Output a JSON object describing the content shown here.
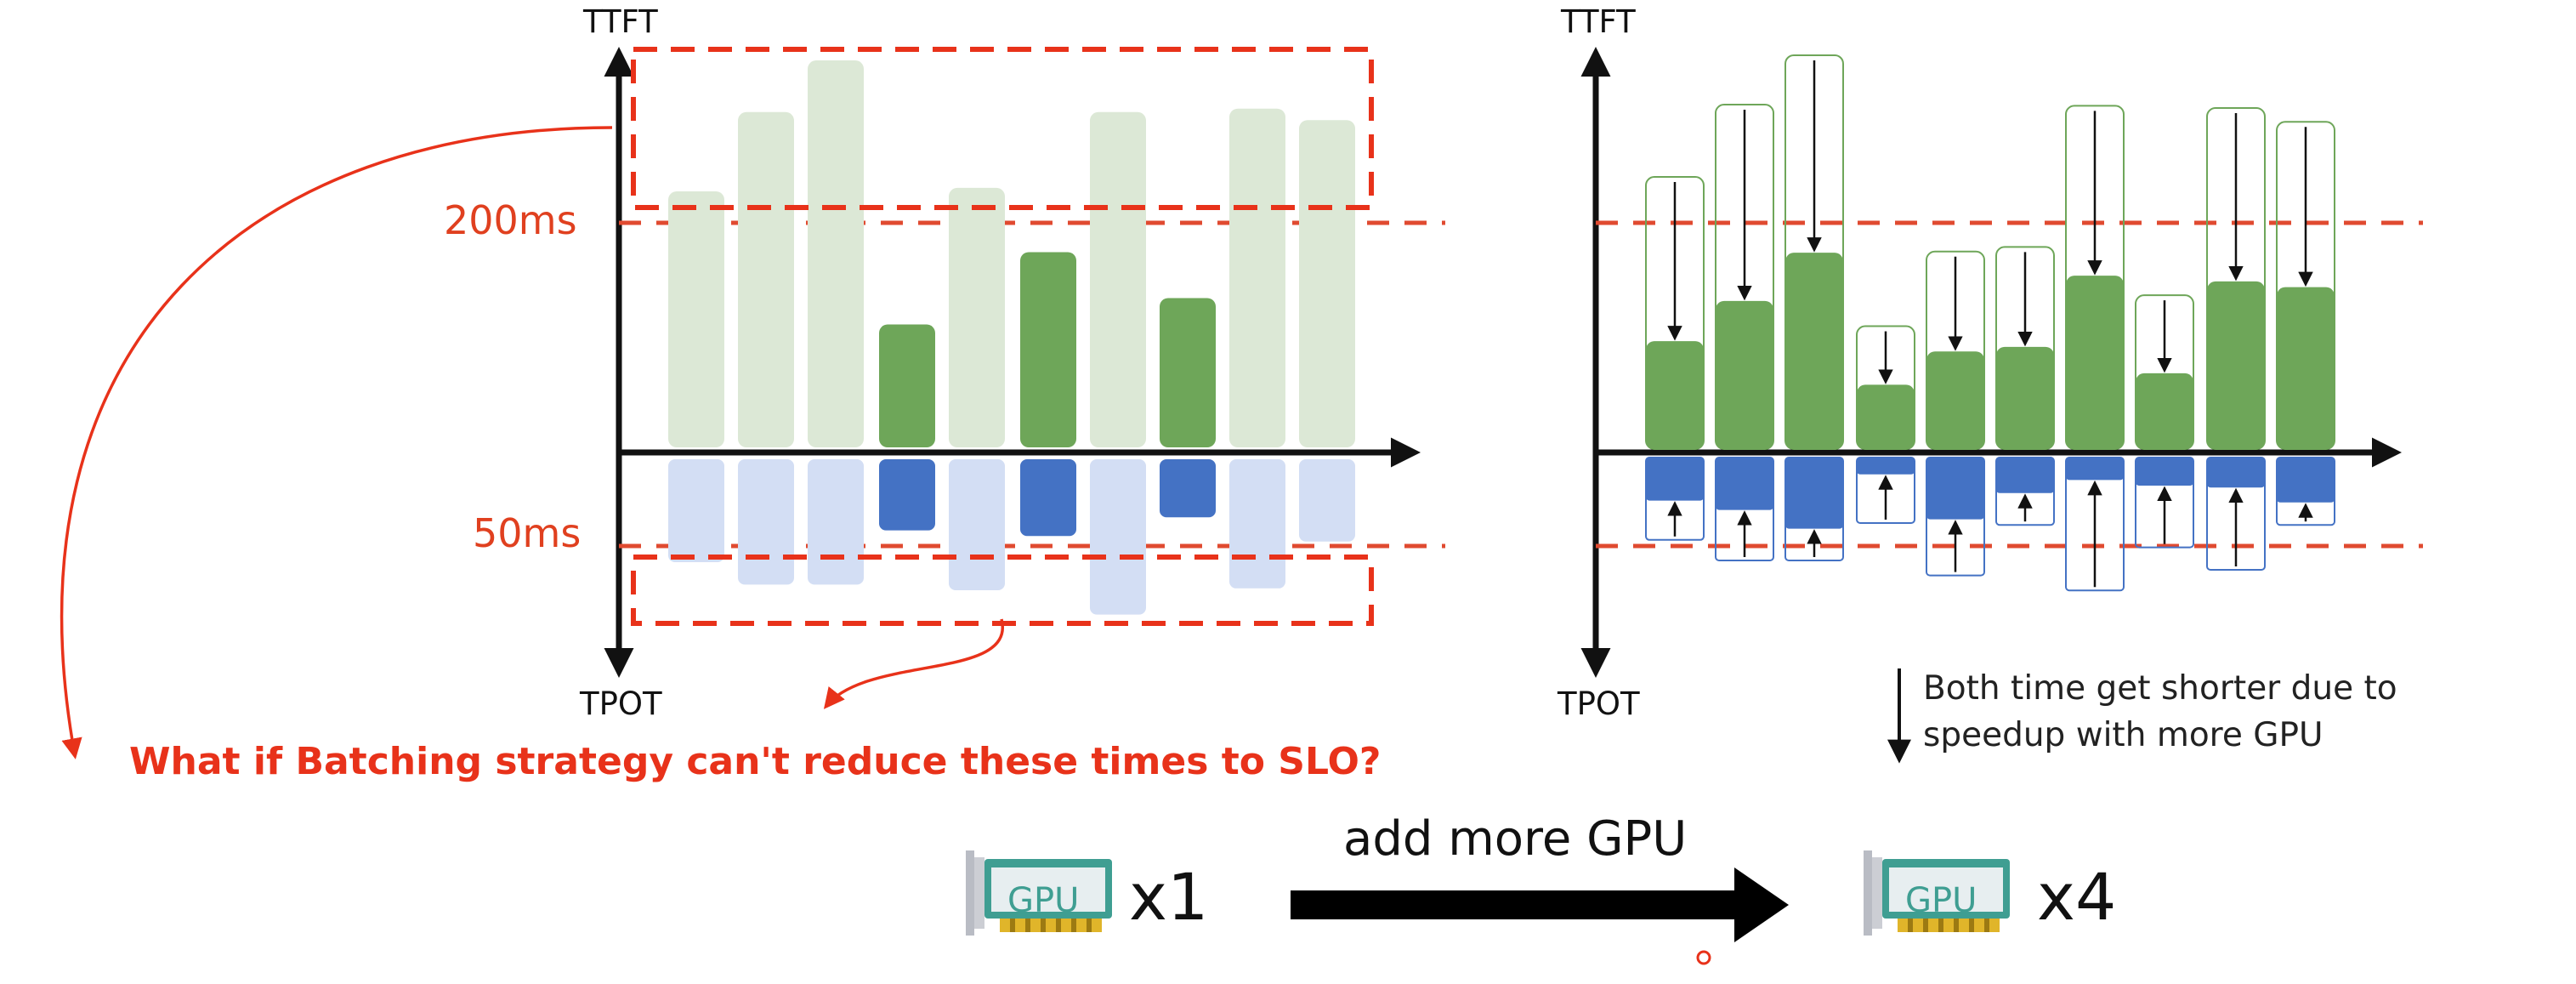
{
  "colors": {
    "accent_red": "#e8321a",
    "slo_line": "#e04a30",
    "green_faded": "#dce8d6",
    "green": "#6ea659",
    "blue_faded": "#d3def4",
    "blue": "#4472c4",
    "gpu_card": "#3f9e92"
  },
  "left_chart": {
    "y_top_label": "TTFT",
    "y_bottom_label": "TPOT",
    "threshold_ttft": "200ms",
    "threshold_tpot": "50ms"
  },
  "right_chart": {
    "y_top_label": "TTFT",
    "y_bottom_label": "TPOT"
  },
  "question_text": "What if Batching strategy can't reduce these times to SLO?",
  "note_text": [
    "Both time get shorter due to",
    "speedup with more GPU"
  ],
  "gpu_before": {
    "card_label": "GPU",
    "multiplier": "x1"
  },
  "gpu_after": {
    "card_label": "GPU",
    "multiplier": "x4"
  },
  "transition_label": "add more GPU",
  "chart_data": {
    "type": "bar",
    "description_axis": {
      "y_up": "TTFT",
      "y_down": "TPOT",
      "ttft_slo": "200ms",
      "tpot_slo": "50ms"
    },
    "before": {
      "ttft": [
        223,
        292,
        337,
        107,
        226,
        170,
        292,
        130,
        295,
        285
      ],
      "tpot": [
        55,
        67,
        67,
        38,
        70,
        41,
        83,
        31,
        69,
        44
      ],
      "meets_slo": [
        false,
        false,
        false,
        true,
        false,
        true,
        false,
        true,
        false,
        false
      ]
    },
    "after": {
      "ttft_before": [
        237,
        300,
        343,
        107,
        172,
        176,
        299,
        134,
        297,
        285
      ],
      "ttft_after": [
        94,
        129,
        171,
        56,
        85,
        89,
        151,
        66,
        146,
        141
      ],
      "tpot_before": [
        44,
        55,
        55,
        35,
        63,
        36,
        71,
        48,
        60,
        36
      ],
      "tpot_after": [
        23,
        28,
        38,
        9,
        33,
        19,
        12,
        15,
        16,
        24
      ]
    }
  }
}
